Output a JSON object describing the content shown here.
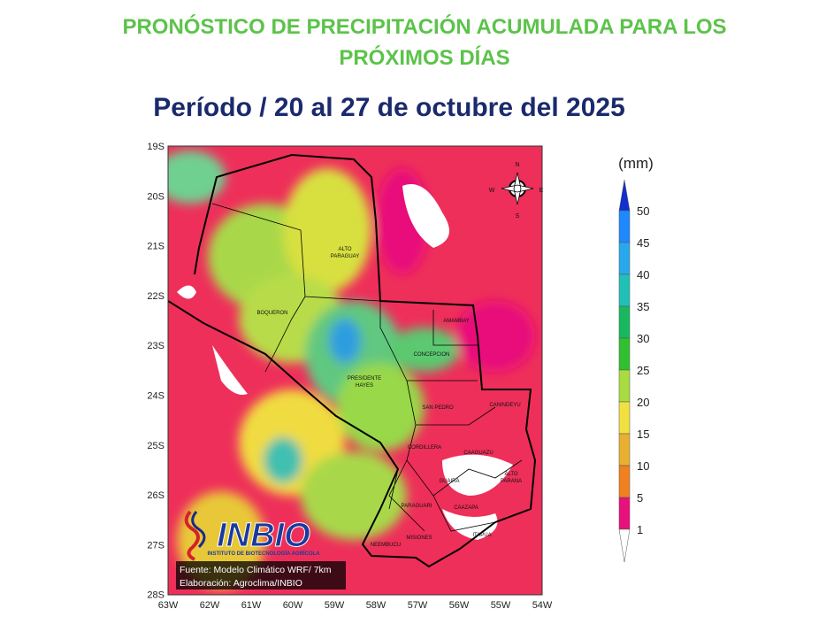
{
  "header": {
    "title_lines": [
      "PRONÓSTICO DE PRECIPITACIÓN ACUMULADA PARA LOS",
      "PRÓXIMOS DÍAS"
    ],
    "period": "Período / 20 al 27 de octubre del 2025"
  },
  "map": {
    "lat_labels": [
      "19S",
      "20S",
      "21S",
      "22S",
      "23S",
      "24S",
      "25S",
      "26S",
      "27S",
      "28S"
    ],
    "lon_labels": [
      "63W",
      "62W",
      "61W",
      "60W",
      "59W",
      "58W",
      "57W",
      "56W",
      "55W",
      "54W"
    ],
    "compass": [
      "N",
      "S",
      "E",
      "W"
    ],
    "regions": [
      [
        "ALTO",
        "PARAGUAY"
      ],
      [
        "BOQUERON"
      ],
      [
        "PRESIDENTE",
        "HAYES"
      ],
      [
        "CONCEPCION"
      ],
      [
        "AMAMBAY"
      ],
      [
        "SAN PEDRO"
      ],
      [
        "CANINDEYU"
      ],
      [
        "CORDILLERA"
      ],
      [
        "CAAGUAZU"
      ],
      [
        "ALTO",
        "PARANA"
      ],
      [
        "GUAIRA"
      ],
      [
        "PARAGUARI"
      ],
      [
        "CAAZAPA"
      ],
      [
        "ITAPUA"
      ],
      [
        "MISIONES"
      ],
      [
        "NEEMBUCU"
      ]
    ],
    "logo": {
      "name": "INBIO",
      "subtitle": "INSTITUTO DE BIOTECNOLOGÍA AGRÍCOLA"
    },
    "footer": [
      "Fuente: Modelo Climático WRF/ 7km",
      "Elaboración: Agroclima/INBIO"
    ]
  },
  "legend": {
    "unit": "(mm)",
    "levels": [
      50,
      45,
      40,
      35,
      30,
      25,
      20,
      15,
      10,
      5,
      1
    ]
  }
}
